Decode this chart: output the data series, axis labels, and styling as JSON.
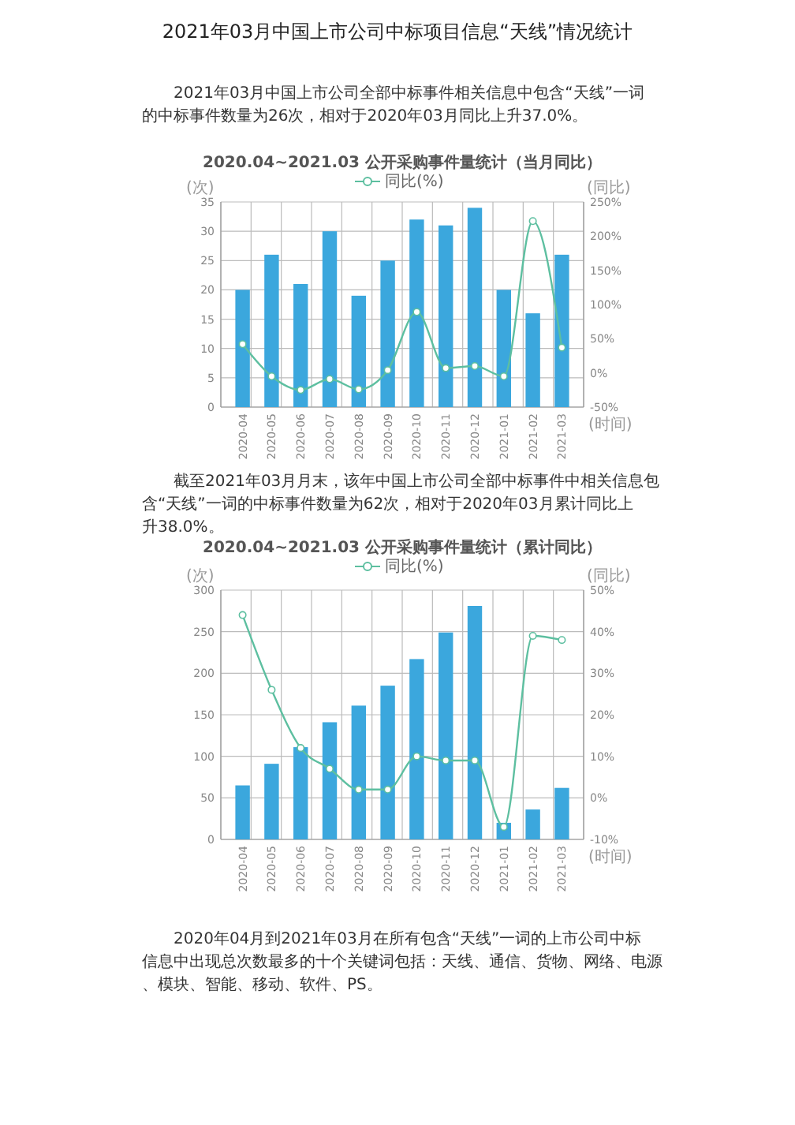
{
  "chart_data": [
    {
      "type": "bar",
      "title": "2020.04~2021.03 公开采购事件量统计（当月同比）",
      "ylabel": "(次)",
      "y2label": "(同比)",
      "xlabel": "(时间)",
      "annotations": [
        "2021年03月中国上市公司中标项目信息“天线”情况统计",
        "2021年03月中国上市公司全部中标事件相关信息中包含“天线”一词的中标事件数量为26次，相对于2020年03月同比上升37.0%。"
      ],
      "categories": [
        "2020-04",
        "2020-05",
        "2020-06",
        "2020-07",
        "2020-08",
        "2020-09",
        "2020-10",
        "2020-11",
        "2020-12",
        "2021-01",
        "2021-02",
        "2021-03"
      ],
      "series": [
        {
          "color": "#3ba7dd",
          "values": [
            20,
            26,
            21,
            30,
            19,
            25,
            32,
            31,
            34,
            20,
            16,
            26
          ]
        },
        {
          "type": "line",
          "name": "同比(%)",
          "axis": "y2",
          "color": "#5dbfa0",
          "values": [
            42,
            -5,
            -25,
            -9,
            -24,
            4,
            89,
            7,
            10,
            -5,
            222,
            37
          ]
        }
      ],
      "ylim": [
        0,
        35
      ],
      "yticks": [
        0,
        5,
        10,
        15,
        20,
        25,
        30,
        35
      ],
      "y2lim": [
        -50,
        250
      ],
      "y2ticks": [
        {
          "value": -50,
          "label": "-50%"
        },
        {
          "value": 0,
          "label": "0%"
        },
        {
          "value": 50,
          "label": "50%"
        },
        {
          "value": 100,
          "label": "100%"
        },
        {
          "value": 150,
          "label": "150%"
        },
        {
          "value": 200,
          "label": "200%"
        },
        {
          "value": 250,
          "label": "250%"
        }
      ],
      "grid": true,
      "legend": "top",
      "marker": "circle"
    },
    {
      "type": "bar",
      "title": "2020.04~2021.03 公开采购事件量统计（累计同比）",
      "ylabel": "(次)",
      "y2label": "(同比)",
      "xlabel": "(时间)",
      "annotations": [
        "截至2021年03月月末，该年中国上市公司全部中标事件中相关信息包含“天线”一词的中标事件数量为62次，相对于2020年03月累计同比上升38.0%。",
        "2020年04月到2021年03月在所有包含“天线”一词的上市公司中标信息中出现总次数最多的十个关键词包括：天线、通信、货物、网络、电源、模块、智能、移动、软件、PS。"
      ],
      "categories": [
        "2020-04",
        "2020-05",
        "2020-06",
        "2020-07",
        "2020-08",
        "2020-09",
        "2020-10",
        "2020-11",
        "2020-12",
        "2021-01",
        "2021-02",
        "2021-03"
      ],
      "series": [
        {
          "color": "#3ba7dd",
          "values": [
            65,
            91,
            111,
            141,
            161,
            185,
            217,
            249,
            281,
            20,
            36,
            62
          ]
        },
        {
          "type": "line",
          "name": "同比(%)",
          "axis": "y2",
          "color": "#5dbfa0",
          "values": [
            44,
            26,
            12,
            7,
            2,
            2,
            10,
            9,
            9,
            -7,
            39,
            38
          ]
        }
      ],
      "ylim": [
        0,
        300
      ],
      "yticks": [
        0,
        50,
        100,
        150,
        200,
        250,
        300
      ],
      "y2lim": [
        -10,
        50
      ],
      "y2ticks": [
        {
          "value": -10,
          "label": "-10%"
        },
        {
          "value": 0,
          "label": "0%"
        },
        {
          "value": 10,
          "label": "10%"
        },
        {
          "value": 20,
          "label": "20%"
        },
        {
          "value": 30,
          "label": "30%"
        },
        {
          "value": 40,
          "label": "40%"
        },
        {
          "value": 50,
          "label": "50%"
        }
      ],
      "grid": true,
      "legend": "top",
      "marker": "circle"
    }
  ]
}
